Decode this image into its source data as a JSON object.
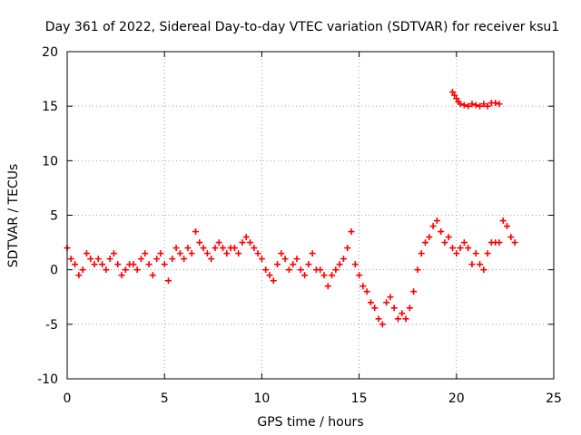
{
  "chart_data": {
    "type": "scatter",
    "title": "Day 361 of 2022, Sidereal Day-to-day VTEC variation (SDTVAR) for receiver ksu1",
    "xlabel": "GPS time / hours",
    "ylabel": "SDTVAR / TECUs",
    "xlim": [
      0,
      25
    ],
    "ylim": [
      -10,
      20
    ],
    "xticks": [
      "0",
      "5",
      "10",
      "15",
      "20",
      "25"
    ],
    "yticks": [
      "-10",
      "-5",
      "0",
      "5",
      "10",
      "15",
      "20"
    ],
    "grid": true,
    "marker": "+",
    "series": [
      {
        "name": "SDTVAR",
        "color": "#ff0000",
        "x": [
          0.0,
          0.2,
          0.4,
          0.6,
          0.8,
          1.0,
          1.2,
          1.4,
          1.6,
          1.8,
          2.0,
          2.2,
          2.4,
          2.6,
          2.8,
          3.0,
          3.2,
          3.4,
          3.6,
          3.8,
          4.0,
          4.2,
          4.4,
          4.6,
          4.8,
          5.0,
          5.2,
          5.4,
          5.6,
          5.8,
          6.0,
          6.2,
          6.4,
          6.6,
          6.8,
          7.0,
          7.2,
          7.4,
          7.6,
          7.8,
          8.0,
          8.2,
          8.4,
          8.6,
          8.8,
          9.0,
          9.2,
          9.4,
          9.6,
          9.8,
          10.0,
          10.2,
          10.4,
          10.6,
          10.8,
          11.0,
          11.2,
          11.4,
          11.6,
          11.8,
          12.0,
          12.2,
          12.4,
          12.6,
          12.8,
          13.0,
          13.2,
          13.4,
          13.6,
          13.8,
          14.0,
          14.2,
          14.4,
          14.6,
          14.8,
          15.0,
          15.2,
          15.4,
          15.6,
          15.8,
          16.0,
          16.2,
          16.4,
          16.6,
          16.8,
          17.0,
          17.2,
          17.4,
          17.6,
          17.8,
          18.0,
          18.2,
          18.4,
          18.6,
          18.8,
          19.0,
          19.2,
          19.4,
          19.6,
          19.8,
          20.0,
          20.2,
          20.4,
          20.6,
          20.8,
          21.0,
          21.2,
          21.4,
          21.6,
          21.8,
          22.0,
          22.2,
          22.4,
          22.6,
          22.8,
          23.0
        ],
        "y": [
          2.0,
          1.0,
          0.5,
          -0.5,
          0.0,
          1.5,
          1.0,
          0.5,
          1.0,
          0.5,
          0.0,
          1.0,
          1.5,
          0.5,
          -0.5,
          0.0,
          0.5,
          0.5,
          0.0,
          1.0,
          1.5,
          0.5,
          -0.5,
          1.0,
          1.5,
          0.5,
          -1.0,
          1.0,
          2.0,
          1.5,
          1.0,
          2.0,
          1.5,
          3.5,
          2.5,
          2.0,
          1.5,
          1.0,
          2.0,
          2.5,
          2.0,
          1.5,
          2.0,
          2.0,
          1.5,
          2.5,
          3.0,
          2.5,
          2.0,
          1.5,
          1.0,
          0.0,
          -0.5,
          -1.0,
          0.5,
          1.5,
          1.0,
          0.0,
          0.5,
          1.0,
          0.0,
          -0.5,
          0.5,
          1.5,
          0.0,
          0.0,
          -0.5,
          -1.5,
          -0.5,
          0.0,
          0.5,
          1.0,
          2.0,
          3.5,
          0.5,
          -0.5,
          -1.5,
          -2.0,
          -3.0,
          -3.5,
          -4.5,
          -5.0,
          -3.0,
          -2.5,
          -3.5,
          -4.5,
          -4.0,
          -4.5,
          -3.5,
          -2.0,
          0.0,
          1.5,
          2.5,
          3.0,
          4.0,
          4.5,
          3.5,
          2.5,
          3.0,
          2.0,
          1.5,
          2.0,
          2.5,
          2.0,
          0.5,
          1.5,
          0.5,
          0.0,
          1.5,
          2.5,
          2.5,
          2.5,
          4.5,
          4.0,
          3.0,
          2.5
        ]
      },
      {
        "name": "SDTVAR (late segment)",
        "color": "#ff0000",
        "x": [
          19.8,
          19.9,
          20.0,
          20.1,
          20.2,
          20.4,
          20.6,
          20.8,
          21.0,
          21.2,
          21.4,
          21.6,
          21.8,
          22.0,
          22.2
        ],
        "y": [
          16.3,
          16.0,
          15.7,
          15.4,
          15.2,
          15.1,
          15.0,
          15.2,
          15.1,
          15.0,
          15.2,
          15.0,
          15.3,
          15.3,
          15.2
        ]
      }
    ]
  }
}
